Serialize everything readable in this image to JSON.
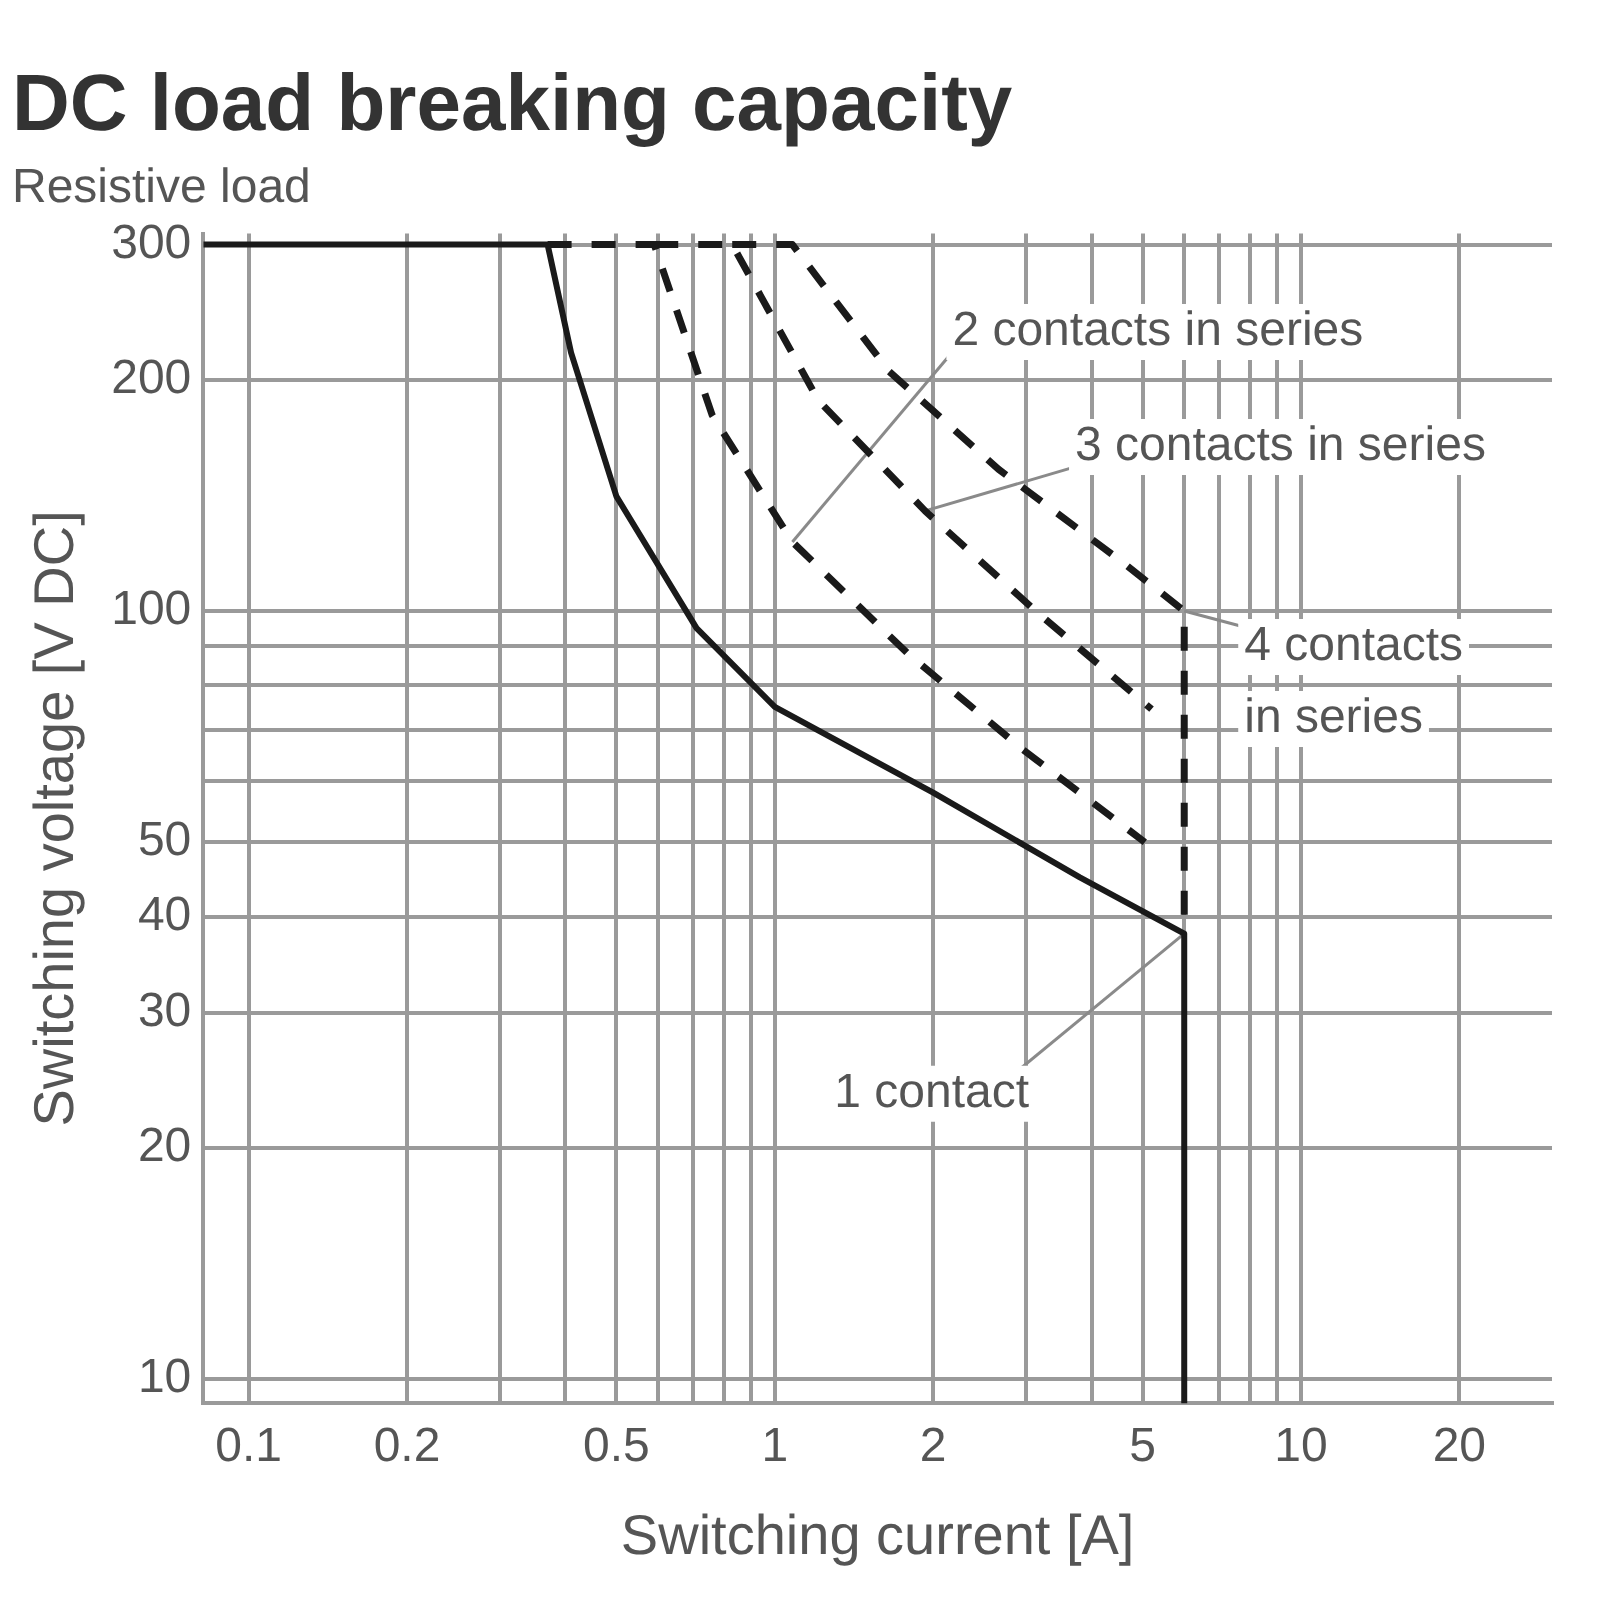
{
  "chart_data": {
    "type": "line",
    "title": "DC load breaking capacity",
    "subtitle": "Resistive load",
    "xlabel": "Switching current [A]",
    "ylabel": "Switching voltage [V DC]",
    "log": "xy",
    "grid": true,
    "legend": false,
    "marker": "none",
    "xlim": [
      0.082,
      30
    ],
    "ylim": [
      9.3,
      310
    ],
    "xticks": [
      0.1,
      0.2,
      {
        "value": 0.3,
        "label": null
      },
      {
        "value": 0.4,
        "label": null
      },
      0.5,
      {
        "value": 0.6,
        "label": null
      },
      {
        "value": 0.7,
        "label": null
      },
      {
        "value": 0.8,
        "label": null
      },
      {
        "value": 0.9,
        "label": null
      },
      1,
      2,
      {
        "value": 3,
        "label": null
      },
      {
        "value": 4,
        "label": null
      },
      5,
      {
        "value": 6,
        "label": null
      },
      {
        "value": 7,
        "label": null
      },
      {
        "value": 8,
        "label": null
      },
      {
        "value": 9,
        "label": null
      },
      10,
      20
    ],
    "yticks": [
      10,
      20,
      30,
      40,
      50,
      {
        "value": 60,
        "label": null
      },
      {
        "value": 70,
        "label": null
      },
      {
        "value": 80,
        "label": null
      },
      {
        "value": 90,
        "label": null
      },
      100,
      200,
      300
    ],
    "series": [
      {
        "color": "#1a1a1a",
        "line_style": "solid",
        "x": [
          0.082,
          0.37,
          0.41,
          0.5,
          0.71,
          1,
          2,
          3.8,
          6,
          6
        ],
        "values": [
          300,
          300,
          217,
          141,
          95,
          75,
          58,
          45,
          38,
          9.3
        ]
      },
      {
        "color": "#1a1a1a",
        "line_style": "dashed",
        "x": [
          0.37,
          0.59,
          0.76,
          1.08,
          1.79,
          2.96,
          5.05
        ],
        "values": [
          300,
          300,
          180,
          123,
          88,
          66,
          50
        ]
      },
      {
        "color": "#1a1a1a",
        "line_style": "dashed",
        "x": [
          0.59,
          0.83,
          1.21,
          1.93,
          3.13,
          5.2
        ],
        "values": [
          300,
          300,
          188,
          135,
          100,
          74.5
        ]
      },
      {
        "color": "#1a1a1a",
        "line_style": "dashed",
        "x": [
          0.83,
          1.08,
          1.65,
          2.66,
          4.56,
          6,
          6
        ],
        "values": [
          300,
          300,
          205,
          153,
          116,
          100,
          38
        ]
      }
    ],
    "annotations": [
      {
        "text": "2 contacts in series",
        "x": 1.08,
        "y": 123
      },
      {
        "text": "3 contacts in series",
        "x": 1.93,
        "y": 135
      },
      {
        "text": "4 contacts in series",
        "x": 6,
        "y": 100
      },
      {
        "text": "1 contact",
        "x": 6,
        "y": 38
      }
    ]
  }
}
